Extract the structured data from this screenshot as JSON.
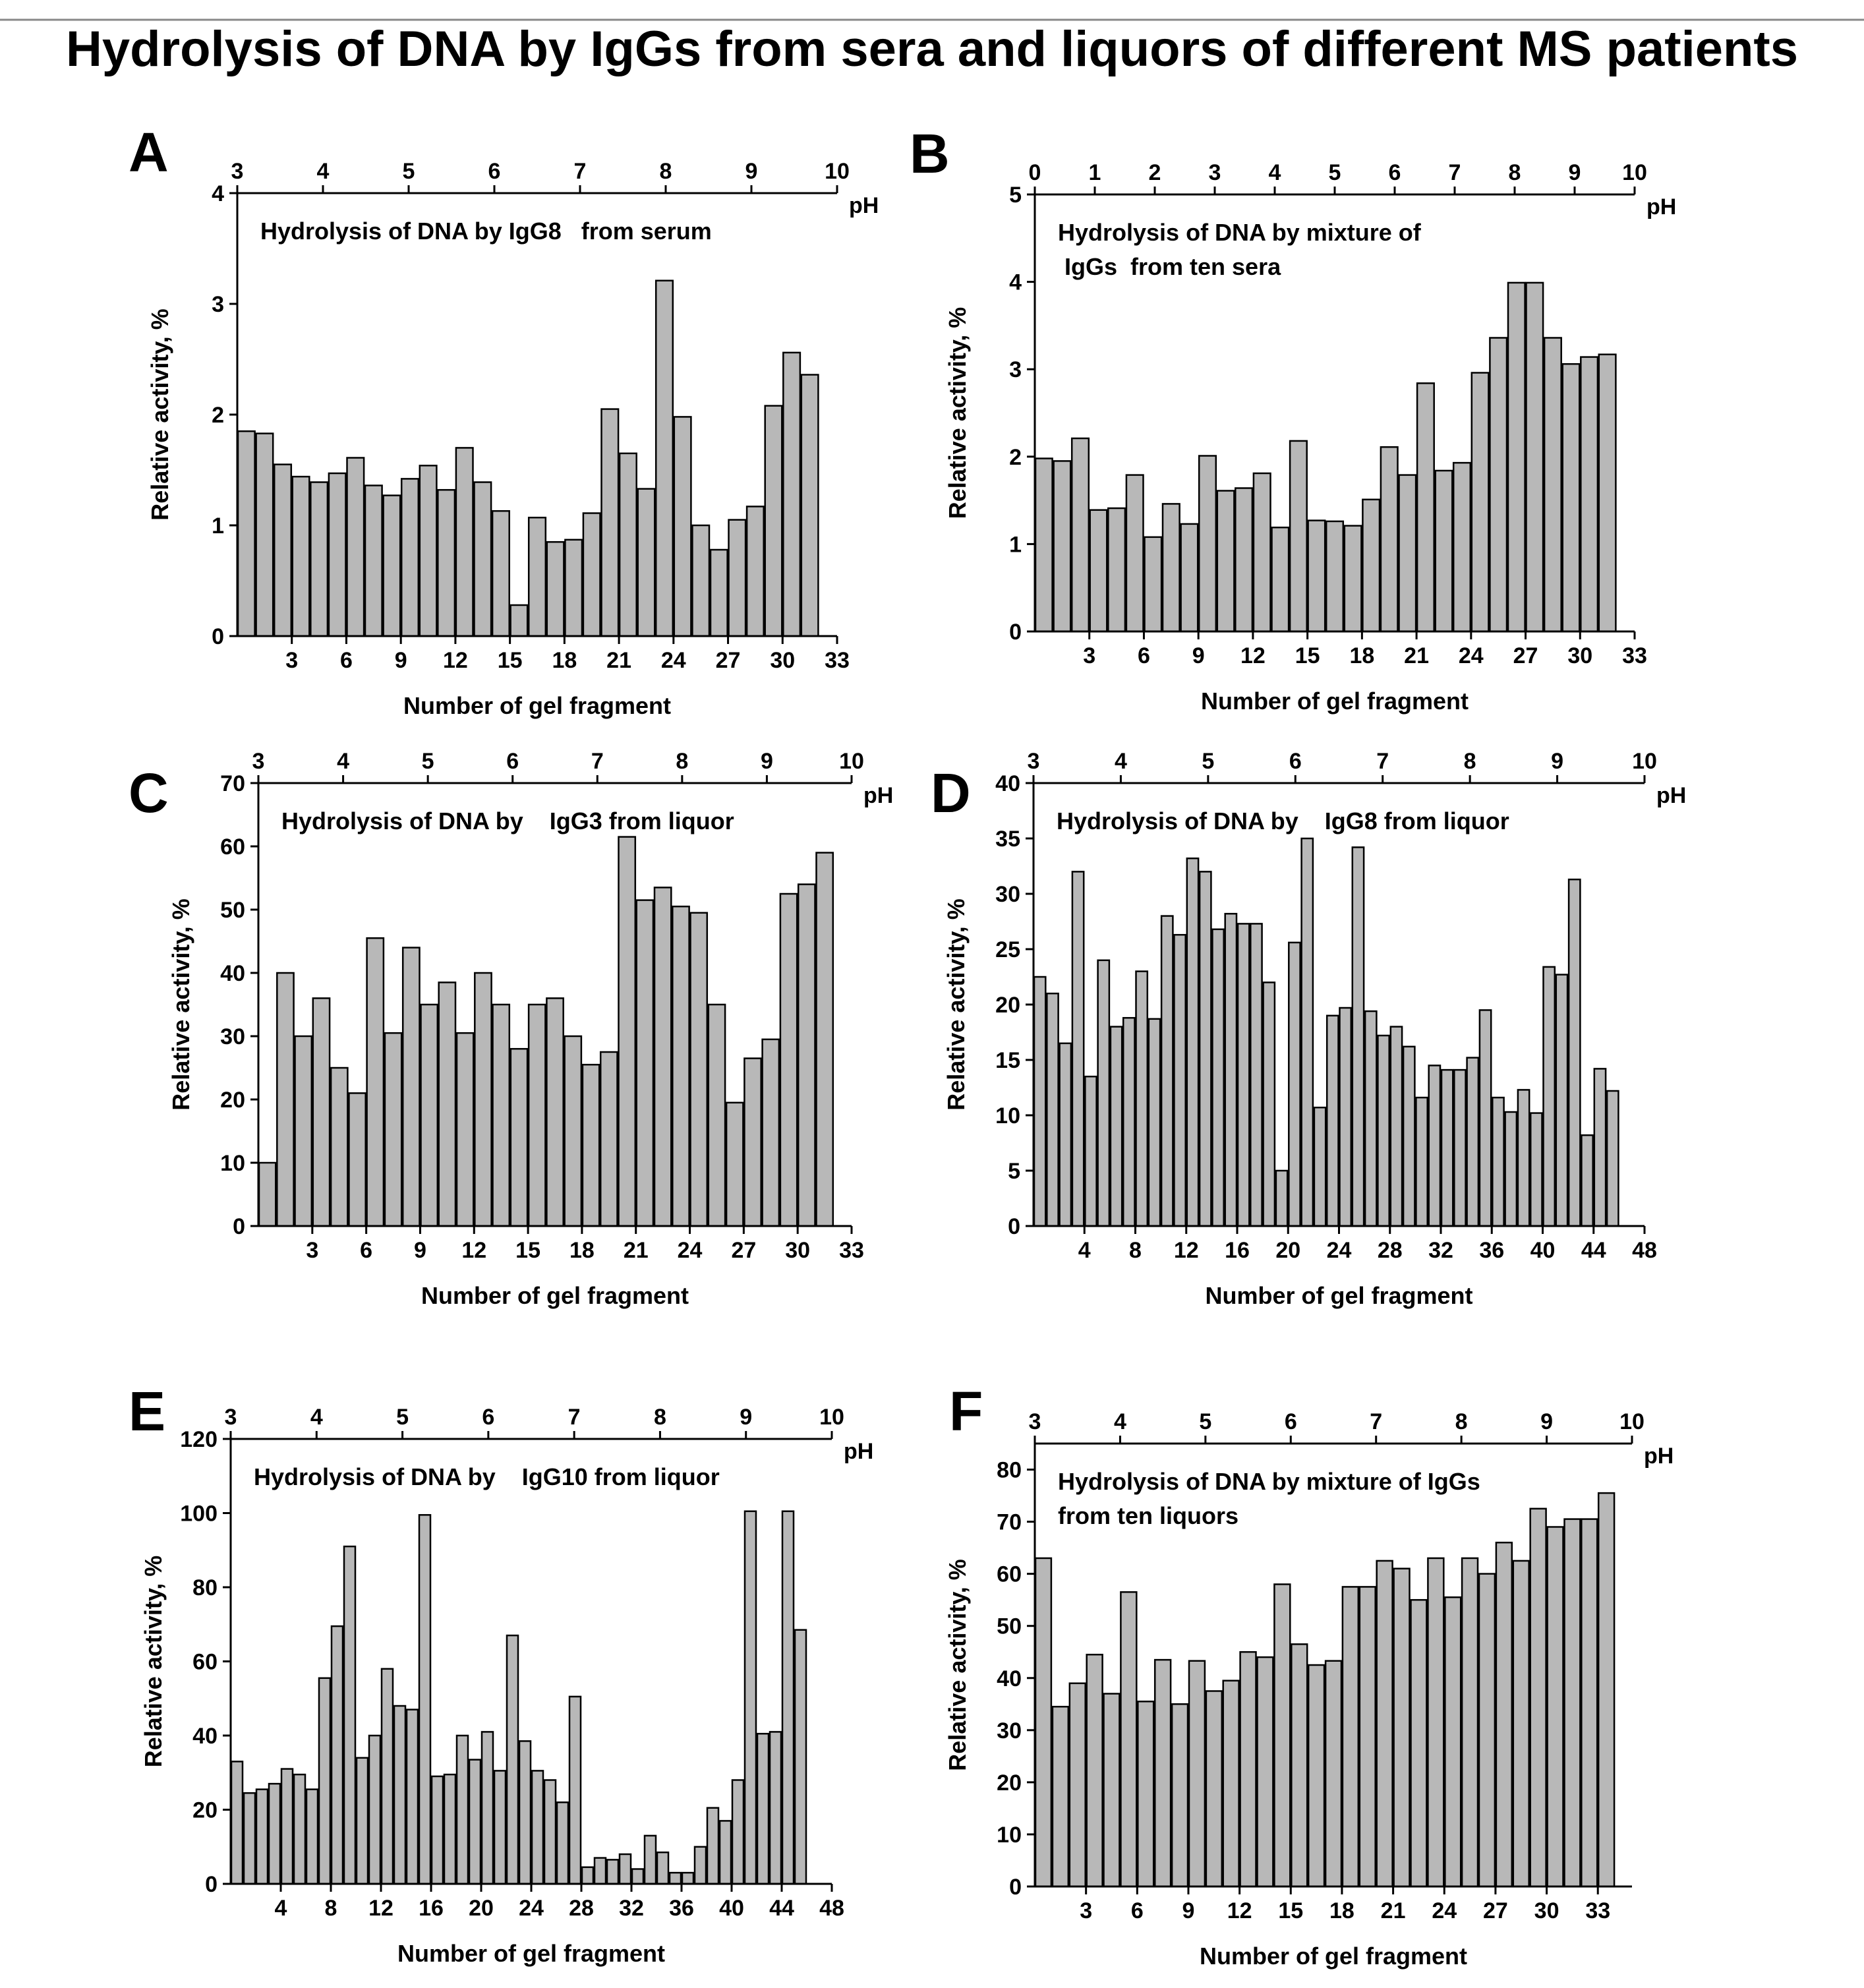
{
  "figure": {
    "title": "Hydrolysis of DNA by IgGs  from sera and liquors of different MS patients",
    "colors": {
      "bar_fill": "#b8b8b8",
      "bar_stroke": "#000000",
      "axis": "#000000",
      "background": "#ffffff"
    }
  },
  "chart_data": [
    {
      "id": "A",
      "type": "bar",
      "letter": "A",
      "title_lines": [
        "Hydrolysis of DNA by IgG8   from serum"
      ],
      "xlabel": "Number of gel fragment",
      "ylabel": "Relative activity, %",
      "xlim": [
        0,
        33
      ],
      "ylim": [
        0,
        4
      ],
      "xticks": [
        3,
        6,
        9,
        12,
        15,
        18,
        21,
        24,
        27,
        30,
        33
      ],
      "yticks": [
        0,
        1,
        2,
        3,
        4
      ],
      "top_axis": {
        "label": "pH",
        "ticks": [
          3,
          4,
          5,
          6,
          7,
          8,
          9,
          10
        ]
      },
      "values": [
        1.85,
        1.83,
        1.55,
        1.44,
        1.39,
        1.47,
        1.61,
        1.36,
        1.27,
        1.42,
        1.54,
        1.32,
        1.7,
        1.39,
        1.13,
        0.28,
        1.07,
        0.85,
        0.87,
        1.11,
        2.05,
        1.65,
        1.33,
        3.21,
        1.98,
        1.0,
        0.78,
        1.05,
        1.17,
        2.08,
        2.56,
        2.36
      ]
    },
    {
      "id": "B",
      "type": "bar",
      "letter": "B",
      "title_lines": [
        "Hydrolysis of DNA by mixture of",
        " IgGs  from ten sera"
      ],
      "xlabel": "Number of gel fragment",
      "ylabel": "Relative activity, %",
      "xlim": [
        0,
        33
      ],
      "ylim": [
        0,
        5
      ],
      "xticks": [
        3,
        6,
        9,
        12,
        15,
        18,
        21,
        24,
        27,
        30,
        33
      ],
      "yticks": [
        0,
        1,
        2,
        3,
        4,
        5
      ],
      "top_axis": {
        "label": "pH",
        "ticks": [
          0,
          1,
          2,
          3,
          4,
          5,
          6,
          7,
          8,
          9,
          10
        ]
      },
      "values": [
        1.98,
        1.95,
        2.21,
        1.39,
        1.41,
        1.79,
        1.08,
        1.46,
        1.23,
        2.01,
        1.61,
        1.64,
        1.81,
        1.19,
        2.18,
        1.27,
        1.26,
        1.21,
        1.51,
        2.11,
        1.79,
        2.84,
        1.84,
        1.93,
        2.96,
        3.36,
        3.99,
        3.99,
        3.36,
        3.06,
        3.14,
        3.17
      ]
    },
    {
      "id": "C",
      "type": "bar",
      "letter": "C",
      "title_lines": [
        "Hydrolysis of DNA by    IgG3 from liquor"
      ],
      "xlabel": "Number of gel fragment",
      "ylabel": "Relative activity, %",
      "xlim": [
        0,
        33
      ],
      "ylim": [
        0,
        70
      ],
      "xticks": [
        3,
        6,
        9,
        12,
        15,
        18,
        21,
        24,
        27,
        30,
        33
      ],
      "yticks": [
        0,
        10,
        20,
        30,
        40,
        50,
        60,
        70
      ],
      "top_axis": {
        "label": "pH",
        "ticks": [
          3,
          4,
          5,
          6,
          7,
          8,
          9,
          10
        ]
      },
      "values": [
        10,
        40,
        30,
        36,
        25,
        21,
        45.5,
        30.5,
        44,
        35,
        38.5,
        30.5,
        40,
        35,
        28,
        35,
        36,
        30,
        25.5,
        27.5,
        61.5,
        51.5,
        53.5,
        50.5,
        49.5,
        35,
        19.5,
        26.5,
        29.5,
        52.5,
        54,
        59
      ]
    },
    {
      "id": "D",
      "type": "bar",
      "letter": "D",
      "title_lines": [
        "Hydrolysis of DNA by    IgG8 from liquor"
      ],
      "xlabel": "Number of gel fragment",
      "ylabel": "Relative activity, %",
      "xlim": [
        0,
        48
      ],
      "ylim": [
        0,
        40
      ],
      "xticks": [
        4,
        8,
        12,
        16,
        20,
        24,
        28,
        32,
        36,
        40,
        44,
        48
      ],
      "yticks": [
        0,
        5,
        10,
        15,
        20,
        25,
        30,
        35,
        40
      ],
      "top_axis": {
        "label": "pH",
        "ticks": [
          3,
          4,
          5,
          6,
          7,
          8,
          9,
          10
        ]
      },
      "values": [
        22.5,
        21,
        16.5,
        32,
        13.5,
        24,
        18,
        18.8,
        23,
        18.7,
        28,
        26.3,
        33.2,
        32,
        26.8,
        28.2,
        27.3,
        27.3,
        22,
        5,
        25.6,
        35,
        10.7,
        19,
        19.7,
        34.2,
        19.4,
        17.2,
        18,
        16.2,
        11.6,
        14.5,
        14.1,
        14.1,
        15.2,
        19.5,
        11.6,
        10.3,
        12.3,
        10.2,
        23.4,
        22.7,
        31.3,
        8.2,
        14.2,
        12.2
      ]
    },
    {
      "id": "E",
      "type": "bar",
      "letter": "E",
      "title_lines": [
        "Hydrolysis of DNA by    IgG10 from liquor"
      ],
      "xlabel": "Number of gel fragment",
      "ylabel": "Relative activity, %",
      "xlim": [
        0,
        48
      ],
      "ylim": [
        0,
        120
      ],
      "xticks": [
        4,
        8,
        12,
        16,
        20,
        24,
        28,
        32,
        36,
        40,
        44,
        48
      ],
      "yticks": [
        0,
        20,
        40,
        60,
        80,
        100,
        120
      ],
      "top_axis": {
        "label": "pH",
        "ticks": [
          3,
          4,
          5,
          6,
          7,
          8,
          9,
          10
        ]
      },
      "values": [
        33,
        24.5,
        25.5,
        27,
        31,
        29.5,
        25.5,
        55.5,
        69.5,
        91,
        34,
        40,
        58,
        48,
        47,
        99.5,
        29,
        29.5,
        40,
        33.5,
        41,
        30.5,
        67,
        38.5,
        30.5,
        28,
        22,
        50.5,
        4.5,
        7,
        6.5,
        8,
        4,
        13,
        8.5,
        3,
        3,
        10,
        20.5,
        17,
        28,
        100.5,
        40.5,
        41,
        100.5,
        68.5
      ]
    },
    {
      "id": "F",
      "type": "bar",
      "letter": "F",
      "title_lines": [
        "Hydrolysis of DNA by mixture of IgGs",
        "from ten liquors"
      ],
      "xlabel": "Number of gel fragment",
      "ylabel": "Relative activity, %",
      "xlim": [
        0,
        35
      ],
      "ylim": [
        0,
        85
      ],
      "xticks": [
        3,
        6,
        9,
        12,
        15,
        18,
        21,
        24,
        27,
        30,
        33
      ],
      "yticks": [
        0,
        10,
        20,
        30,
        40,
        50,
        60,
        70,
        80
      ],
      "top_axis": {
        "label": "pH",
        "ticks": [
          3,
          4,
          5,
          6,
          7,
          8,
          9,
          10
        ]
      },
      "values": [
        63,
        34.5,
        39,
        44.5,
        37,
        56.5,
        35.5,
        43.5,
        35,
        43.3,
        37.5,
        39.5,
        45,
        44,
        58,
        46.5,
        42.5,
        43.3,
        57.5,
        57.5,
        62.5,
        61,
        55,
        63,
        55.5,
        63,
        60,
        66,
        62.5,
        72.5,
        69,
        70.5,
        70.5,
        75.5
      ]
    }
  ]
}
